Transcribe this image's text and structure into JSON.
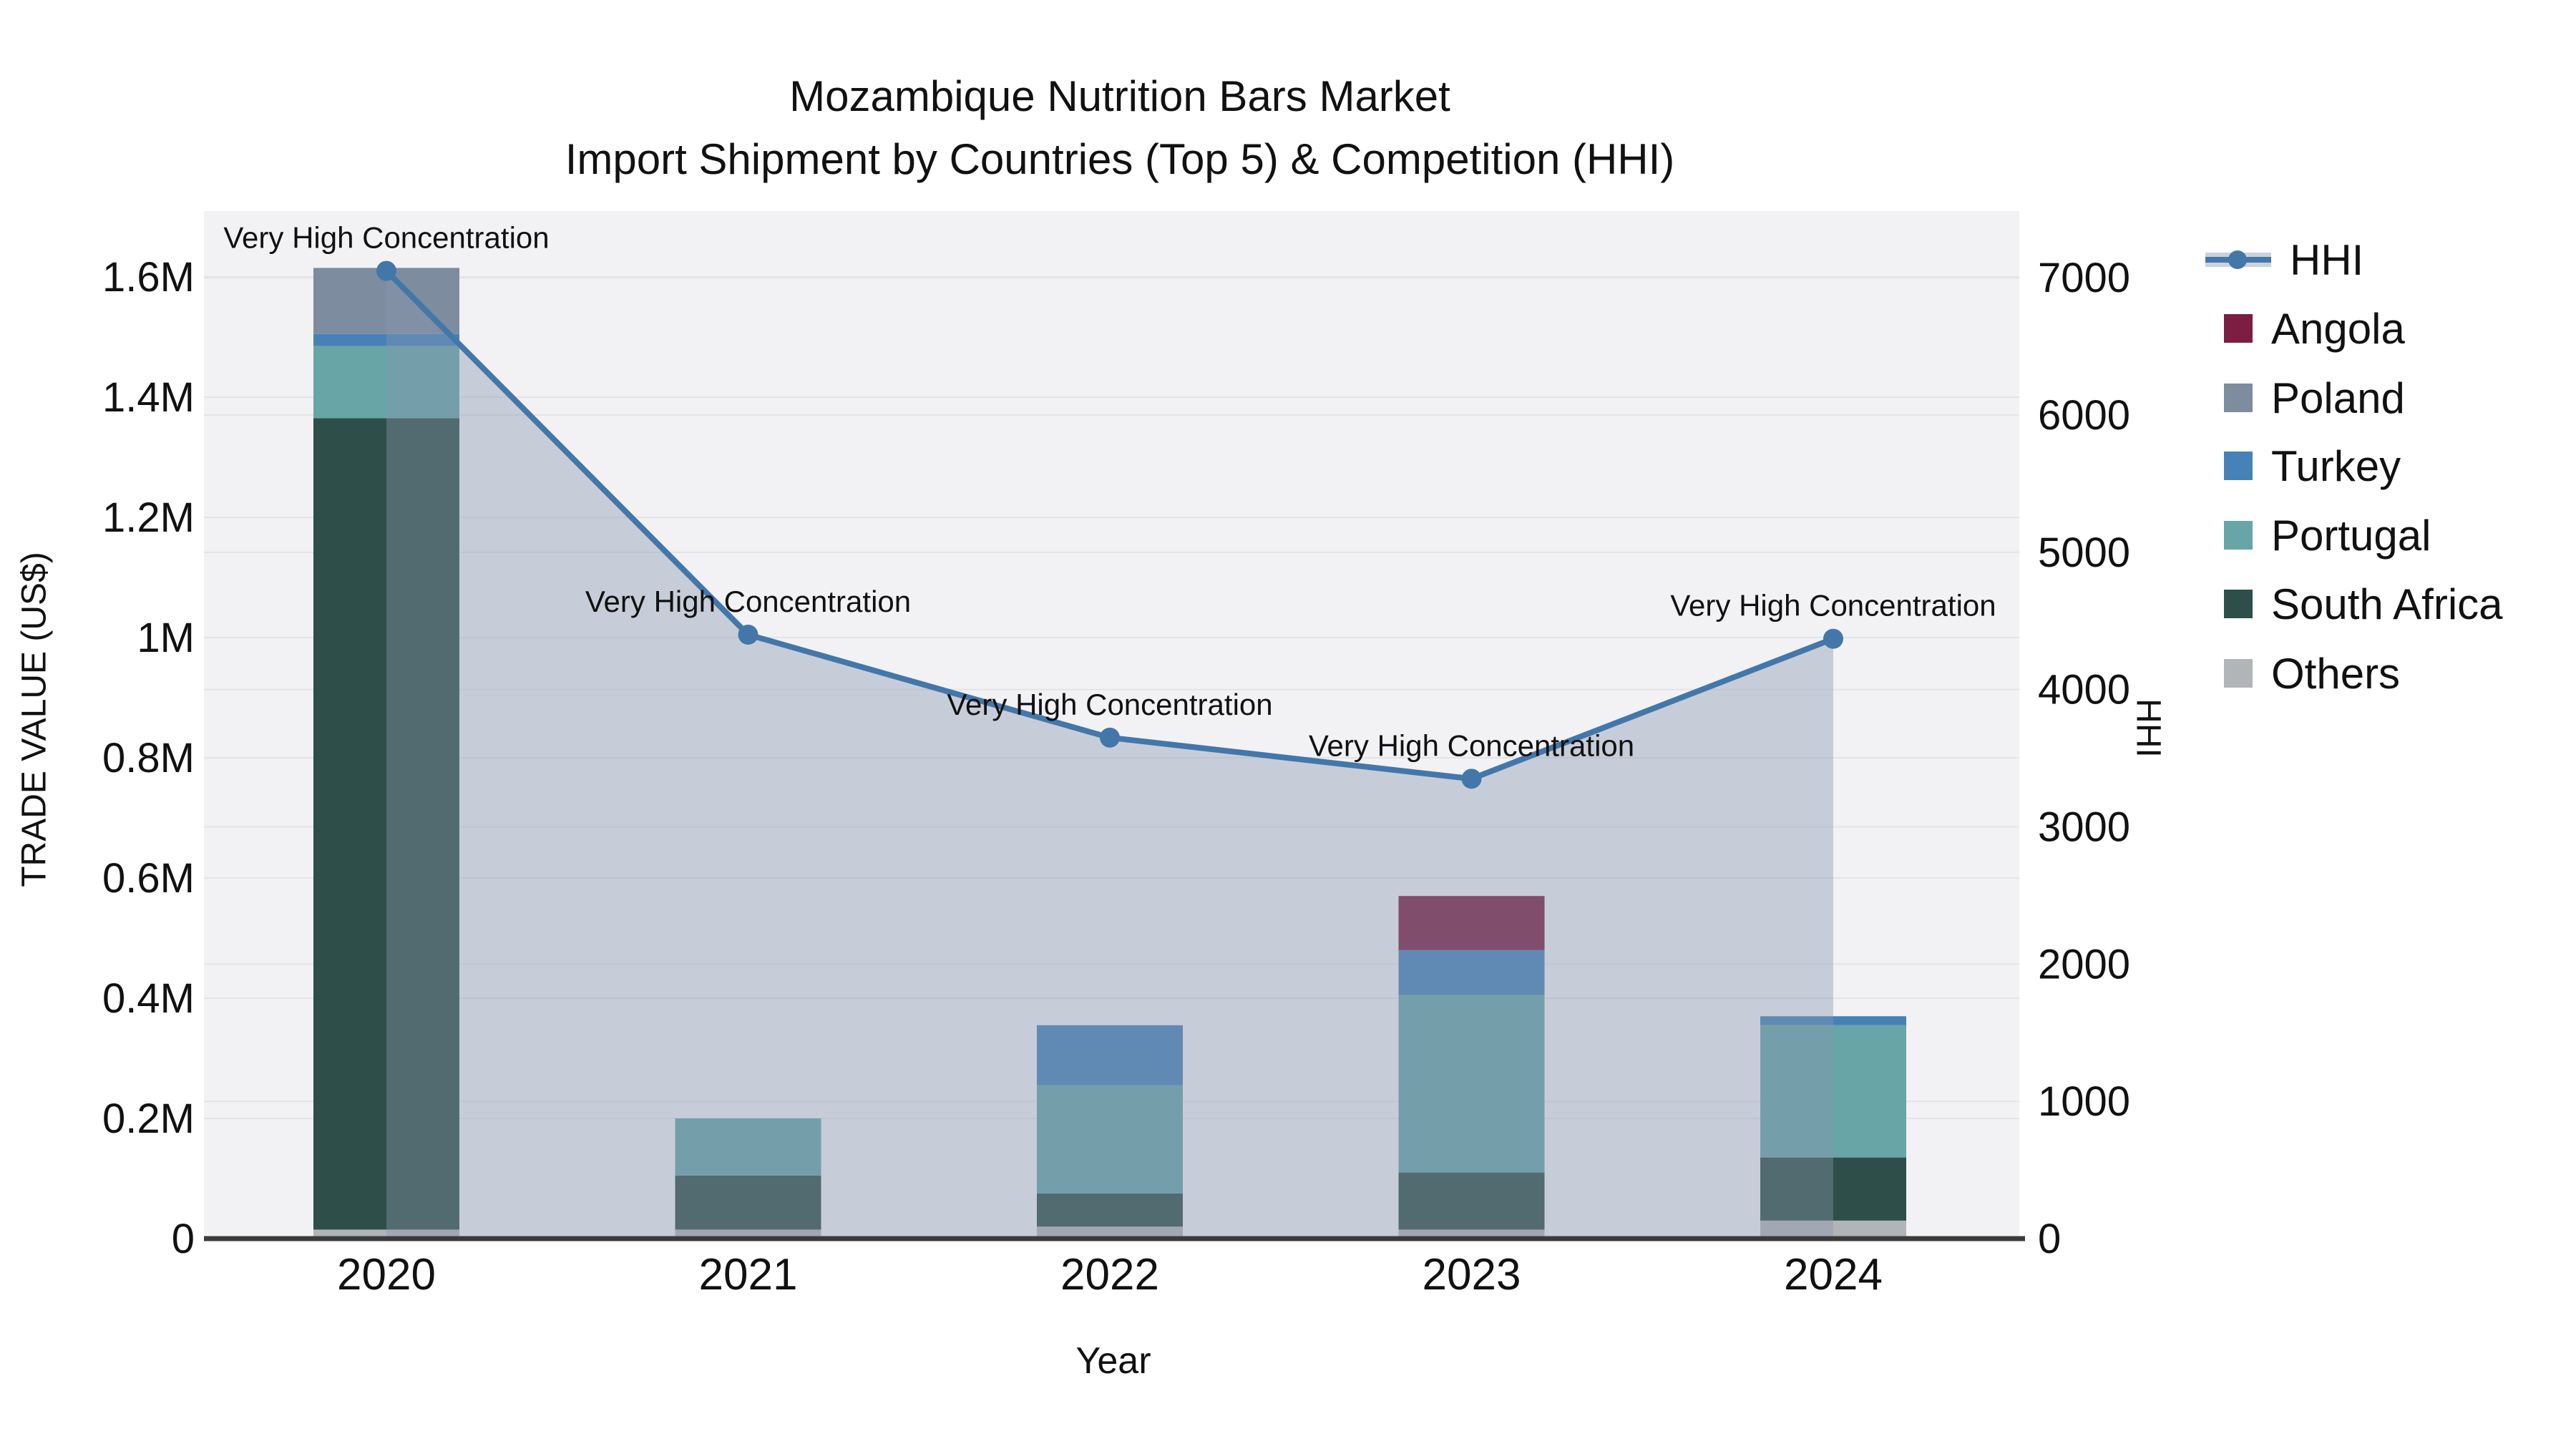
{
  "title": {
    "line1": "Mozambique Nutrition Bars Market",
    "line2": "Import Shipment by Countries (Top 5) & Competition (HHI)"
  },
  "axes": {
    "left_title": "TRADE VALUE (US$)",
    "right_title": "HHI",
    "x_title": "Year"
  },
  "annotation_text": "Very High Concentration",
  "colors": {
    "hhi_line": "#4377aa",
    "hhi_area": "rgba(135,150,175,0.40)",
    "angola": "#7c1d42",
    "poland": "#7d8c9e",
    "turkey": "#4682b8",
    "portugal": "#68a5a7",
    "south_africa": "#2e4f49",
    "others": "#b2b5b7",
    "plot_bg": "#f2f2f4",
    "grid": "#e3e4e8",
    "axis_line": "#3b3b3b"
  },
  "legend": {
    "items": [
      {
        "label": "HHI",
        "type": "line",
        "color": "#4377aa",
        "band": "#c9d2dd"
      },
      {
        "label": "Angola",
        "type": "swatch",
        "color": "#7c1d42"
      },
      {
        "label": "Poland",
        "type": "swatch",
        "color": "#7d8c9e"
      },
      {
        "label": "Turkey",
        "type": "swatch",
        "color": "#4682b8"
      },
      {
        "label": "Portugal",
        "type": "swatch",
        "color": "#68a5a7"
      },
      {
        "label": "South Africa",
        "type": "swatch",
        "color": "#2e4f49"
      },
      {
        "label": "Others",
        "type": "swatch",
        "color": "#b2b5b7"
      }
    ]
  },
  "chart_data": {
    "type": "combo stacked-bar + line-area",
    "categories": [
      "2020",
      "2021",
      "2022",
      "2023",
      "2024"
    ],
    "bar_series": [
      {
        "name": "Others",
        "color": "#b2b5b7",
        "values": [
          15000,
          15000,
          20000,
          15000,
          30000
        ]
      },
      {
        "name": "South Africa",
        "color": "#2e4f49",
        "values": [
          1350000,
          90000,
          55000,
          95000,
          105000
        ]
      },
      {
        "name": "Portugal",
        "color": "#68a5a7",
        "values": [
          120000,
          95000,
          180000,
          295000,
          220000
        ]
      },
      {
        "name": "Turkey",
        "color": "#4682b8",
        "values": [
          20000,
          0,
          100000,
          75000,
          15000
        ]
      },
      {
        "name": "Poland",
        "color": "#7d8c9e",
        "values": [
          110000,
          0,
          0,
          0,
          0
        ]
      },
      {
        "name": "Angola",
        "color": "#7c1d42",
        "values": [
          0,
          0,
          0,
          90000,
          0
        ]
      }
    ],
    "bar_totals": [
      1615000,
      200000,
      355000,
      570000,
      370000
    ],
    "line_series": {
      "name": "HHI",
      "color": "#4377aa",
      "values": [
        7050,
        4400,
        3650,
        3350,
        4370
      ]
    },
    "annotations": [
      "Very High Concentration",
      "Very High Concentration",
      "Very High Concentration",
      "Very High Concentration",
      "Very High Concentration"
    ],
    "xlabel": "Year",
    "ylabel_left": "TRADE VALUE (US$)",
    "ylabel_right": "HHI",
    "left_ticks": [
      {
        "label": "0",
        "value": 0
      },
      {
        "label": "0.2M",
        "value": 200000
      },
      {
        "label": "0.4M",
        "value": 400000
      },
      {
        "label": "0.6M",
        "value": 600000
      },
      {
        "label": "0.8M",
        "value": 800000
      },
      {
        "label": "1M",
        "value": 1000000
      },
      {
        "label": "1.2M",
        "value": 1200000
      },
      {
        "label": "1.4M",
        "value": 1400000
      },
      {
        "label": "1.6M",
        "value": 1600000
      }
    ],
    "right_ticks": [
      {
        "label": "0",
        "value": 0
      },
      {
        "label": "1000",
        "value": 1000
      },
      {
        "label": "2000",
        "value": 2000
      },
      {
        "label": "3000",
        "value": 3000
      },
      {
        "label": "4000",
        "value": 4000
      },
      {
        "label": "5000",
        "value": 5000
      },
      {
        "label": "6000",
        "value": 6000
      },
      {
        "label": "7000",
        "value": 7000
      }
    ],
    "left_ylim": [
      0,
      1710000
    ],
    "right_ylim": [
      0,
      7480
    ],
    "grid": true,
    "legend_position": "right"
  }
}
